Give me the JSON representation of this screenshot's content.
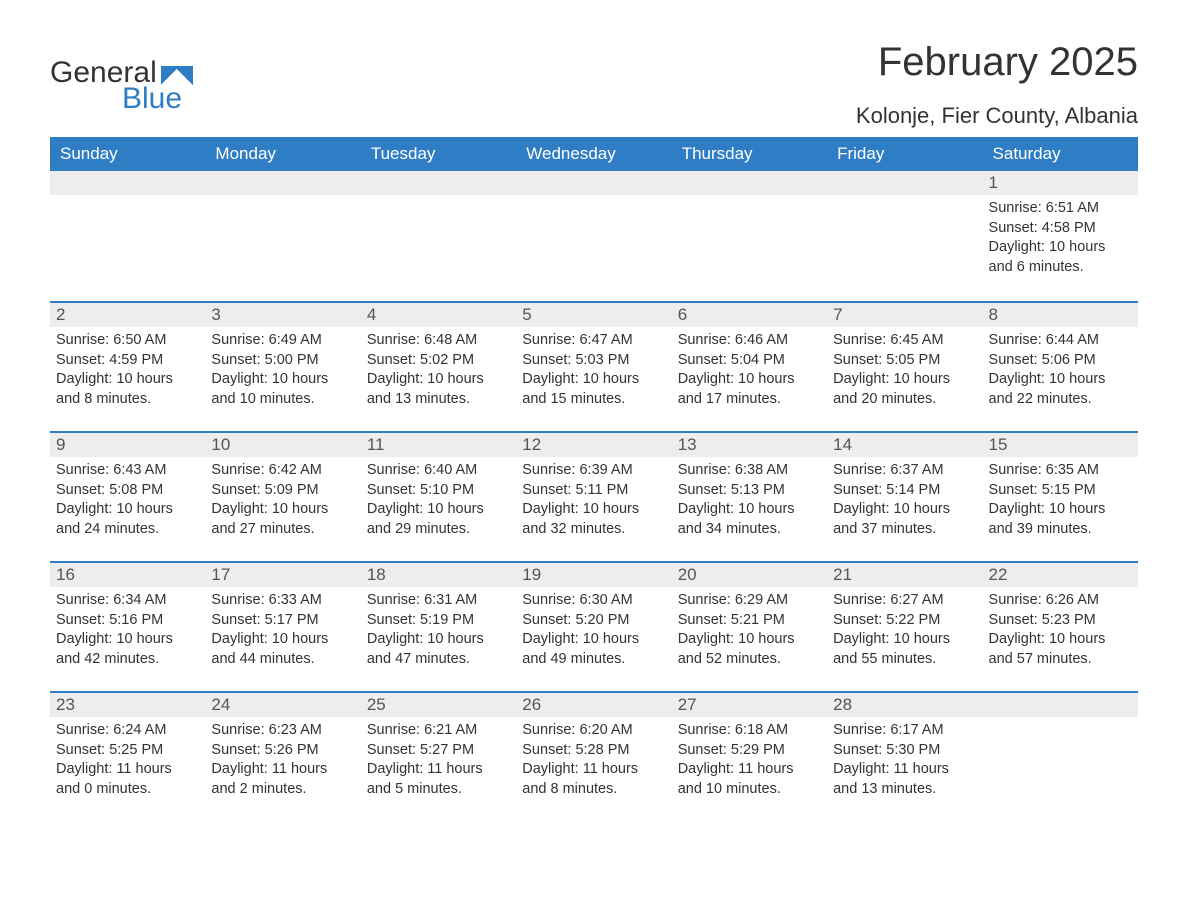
{
  "logo": {
    "word1": "General",
    "word2": "Blue"
  },
  "title": "February 2025",
  "location": "Kolonje, Fier County, Albania",
  "colors": {
    "header_bg": "#2f7dc4",
    "header_text": "#ffffff",
    "daynum_bg": "#ededed",
    "row_separator": "#2f7dc4",
    "body_text": "#333333",
    "page_bg": "#ffffff"
  },
  "weekdays": [
    "Sunday",
    "Monday",
    "Tuesday",
    "Wednesday",
    "Thursday",
    "Friday",
    "Saturday"
  ],
  "start_weekday_index": 6,
  "days_in_month": 28,
  "labels": {
    "sunrise": "Sunrise:",
    "sunset": "Sunset:",
    "daylight": "Daylight:"
  },
  "days": {
    "1": {
      "sunrise": "6:51 AM",
      "sunset": "4:58 PM",
      "daylight": "10 hours and 6 minutes."
    },
    "2": {
      "sunrise": "6:50 AM",
      "sunset": "4:59 PM",
      "daylight": "10 hours and 8 minutes."
    },
    "3": {
      "sunrise": "6:49 AM",
      "sunset": "5:00 PM",
      "daylight": "10 hours and 10 minutes."
    },
    "4": {
      "sunrise": "6:48 AM",
      "sunset": "5:02 PM",
      "daylight": "10 hours and 13 minutes."
    },
    "5": {
      "sunrise": "6:47 AM",
      "sunset": "5:03 PM",
      "daylight": "10 hours and 15 minutes."
    },
    "6": {
      "sunrise": "6:46 AM",
      "sunset": "5:04 PM",
      "daylight": "10 hours and 17 minutes."
    },
    "7": {
      "sunrise": "6:45 AM",
      "sunset": "5:05 PM",
      "daylight": "10 hours and 20 minutes."
    },
    "8": {
      "sunrise": "6:44 AM",
      "sunset": "5:06 PM",
      "daylight": "10 hours and 22 minutes."
    },
    "9": {
      "sunrise": "6:43 AM",
      "sunset": "5:08 PM",
      "daylight": "10 hours and 24 minutes."
    },
    "10": {
      "sunrise": "6:42 AM",
      "sunset": "5:09 PM",
      "daylight": "10 hours and 27 minutes."
    },
    "11": {
      "sunrise": "6:40 AM",
      "sunset": "5:10 PM",
      "daylight": "10 hours and 29 minutes."
    },
    "12": {
      "sunrise": "6:39 AM",
      "sunset": "5:11 PM",
      "daylight": "10 hours and 32 minutes."
    },
    "13": {
      "sunrise": "6:38 AM",
      "sunset": "5:13 PM",
      "daylight": "10 hours and 34 minutes."
    },
    "14": {
      "sunrise": "6:37 AM",
      "sunset": "5:14 PM",
      "daylight": "10 hours and 37 minutes."
    },
    "15": {
      "sunrise": "6:35 AM",
      "sunset": "5:15 PM",
      "daylight": "10 hours and 39 minutes."
    },
    "16": {
      "sunrise": "6:34 AM",
      "sunset": "5:16 PM",
      "daylight": "10 hours and 42 minutes."
    },
    "17": {
      "sunrise": "6:33 AM",
      "sunset": "5:17 PM",
      "daylight": "10 hours and 44 minutes."
    },
    "18": {
      "sunrise": "6:31 AM",
      "sunset": "5:19 PM",
      "daylight": "10 hours and 47 minutes."
    },
    "19": {
      "sunrise": "6:30 AM",
      "sunset": "5:20 PM",
      "daylight": "10 hours and 49 minutes."
    },
    "20": {
      "sunrise": "6:29 AM",
      "sunset": "5:21 PM",
      "daylight": "10 hours and 52 minutes."
    },
    "21": {
      "sunrise": "6:27 AM",
      "sunset": "5:22 PM",
      "daylight": "10 hours and 55 minutes."
    },
    "22": {
      "sunrise": "6:26 AM",
      "sunset": "5:23 PM",
      "daylight": "10 hours and 57 minutes."
    },
    "23": {
      "sunrise": "6:24 AM",
      "sunset": "5:25 PM",
      "daylight": "11 hours and 0 minutes."
    },
    "24": {
      "sunrise": "6:23 AM",
      "sunset": "5:26 PM",
      "daylight": "11 hours and 2 minutes."
    },
    "25": {
      "sunrise": "6:21 AM",
      "sunset": "5:27 PM",
      "daylight": "11 hours and 5 minutes."
    },
    "26": {
      "sunrise": "6:20 AM",
      "sunset": "5:28 PM",
      "daylight": "11 hours and 8 minutes."
    },
    "27": {
      "sunrise": "6:18 AM",
      "sunset": "5:29 PM",
      "daylight": "11 hours and 10 minutes."
    },
    "28": {
      "sunrise": "6:17 AM",
      "sunset": "5:30 PM",
      "daylight": "11 hours and 13 minutes."
    }
  }
}
